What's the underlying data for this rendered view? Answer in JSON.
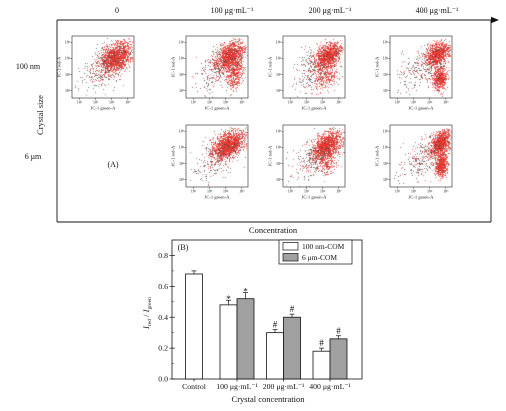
{
  "panel_a": {
    "label": "(A)",
    "column_headers": [
      "0",
      "100 μg·mL⁻¹",
      "200 μg·mL⁻¹",
      "400 μg·mL⁻¹"
    ],
    "column_axis_title": "Concentration",
    "row_labels": [
      "100 nm",
      "6 μm"
    ],
    "row_axis_title": "Crystal size",
    "plot_xlabel": "JC-1 green-A",
    "plot_ylabel": "JC-1 red-A",
    "tick_labels": [
      "10²",
      "10³",
      "10⁴",
      "10⁵"
    ],
    "colors": {
      "dots_red": "#e8352f",
      "dots_dark": "#3d3d3d"
    }
  },
  "chart_data": {
    "type": "bar",
    "panel_label": "(B)",
    "categories": [
      "Control",
      "100 μg·mL⁻¹",
      "200 μg·mL⁻¹",
      "400 μg·mL⁻¹"
    ],
    "series": [
      {
        "name": "100 nm-COM",
        "color": "#ffffff",
        "values": [
          0.68,
          0.48,
          0.3,
          0.18
        ],
        "errors": [
          0.02,
          0.03,
          0.02,
          0.02
        ],
        "annotations": [
          null,
          "*",
          "#",
          "#"
        ]
      },
      {
        "name": "6 μm-COM",
        "color": "#a0a0a0",
        "values": [
          null,
          0.52,
          0.4,
          0.26
        ],
        "errors": [
          null,
          0.04,
          0.02,
          0.02
        ],
        "annotations": [
          null,
          "*",
          "#",
          "#"
        ]
      }
    ],
    "xlabel": "Crystal concentration",
    "ylabel": {
      "symbol": "I",
      "numerator_subscript": "red",
      "separator": " / ",
      "denominator_subscript": "green"
    },
    "ylim": [
      0,
      0.9
    ],
    "yticks": [
      "0.0",
      "0.2",
      "0.4",
      "0.6",
      "0.8"
    ],
    "grid": false,
    "legend": "top-right"
  }
}
